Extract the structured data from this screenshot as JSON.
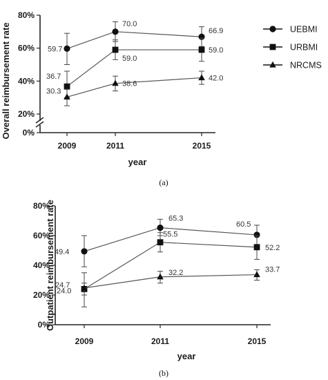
{
  "chart_data": [
    {
      "type": "line",
      "panel_label": "(a)",
      "xlabel": "year",
      "ylabel": "Overall reimbursement rate",
      "x": [
        "2009",
        "2011",
        "2015"
      ],
      "y_ticks": [
        "0%",
        "20%",
        "40%",
        "60%",
        "80%"
      ],
      "ylim": [
        0,
        80
      ],
      "axis_break": [
        0,
        20
      ],
      "legend_position": "right",
      "series": [
        {
          "name": "UEBMI",
          "marker": "circle",
          "values": [
            59.7,
            70.0,
            66.9
          ],
          "labels": [
            "59.7",
            "70.0",
            "66.9"
          ],
          "err_low": [
            50,
            64,
            61
          ],
          "err_high": [
            69,
            76,
            73
          ]
        },
        {
          "name": "URBMI",
          "marker": "square",
          "values": [
            36.7,
            59.0,
            59.0
          ],
          "labels": [
            "36.7",
            "59.0",
            "59.0"
          ],
          "err_low": [
            30,
            53,
            52
          ],
          "err_high": [
            46,
            65,
            66
          ]
        },
        {
          "name": "NRCMS",
          "marker": "triangle",
          "values": [
            30.3,
            38.6,
            42.0
          ],
          "labels": [
            "30.3",
            "38.6",
            "42.0"
          ],
          "err_low": [
            25,
            34,
            38
          ],
          "err_high": [
            35,
            43,
            46
          ]
        }
      ]
    },
    {
      "type": "line",
      "panel_label": "(b)",
      "xlabel": "year",
      "ylabel": "Outpatient reimbursement rate",
      "x": [
        "2009",
        "2011",
        "2015"
      ],
      "y_ticks": [
        "0%",
        "20%",
        "40%",
        "60%",
        "80%"
      ],
      "ylim": [
        0,
        80
      ],
      "series": [
        {
          "name": "UEBMI",
          "marker": "circle",
          "values": [
            49.4,
            65.3,
            60.5
          ],
          "labels": [
            "49.4",
            "65.3",
            "60.5"
          ],
          "err_low": [
            39,
            60,
            54
          ],
          "err_high": [
            60,
            71,
            67
          ]
        },
        {
          "name": "URBMI",
          "marker": "square",
          "values": [
            24.0,
            55.5,
            52.2
          ],
          "labels": [
            "24.0",
            "55.5",
            "52.2"
          ],
          "err_low": [
            12,
            49,
            44
          ],
          "err_high": [
            35,
            62,
            60
          ]
        },
        {
          "name": "NRCMS",
          "marker": "triangle",
          "values": [
            24.7,
            32.2,
            33.7
          ],
          "labels": [
            "24.7",
            "32.2",
            "33.7"
          ],
          "err_low": [
            20,
            28,
            30
          ],
          "err_high": [
            28,
            36,
            37
          ]
        }
      ]
    }
  ]
}
